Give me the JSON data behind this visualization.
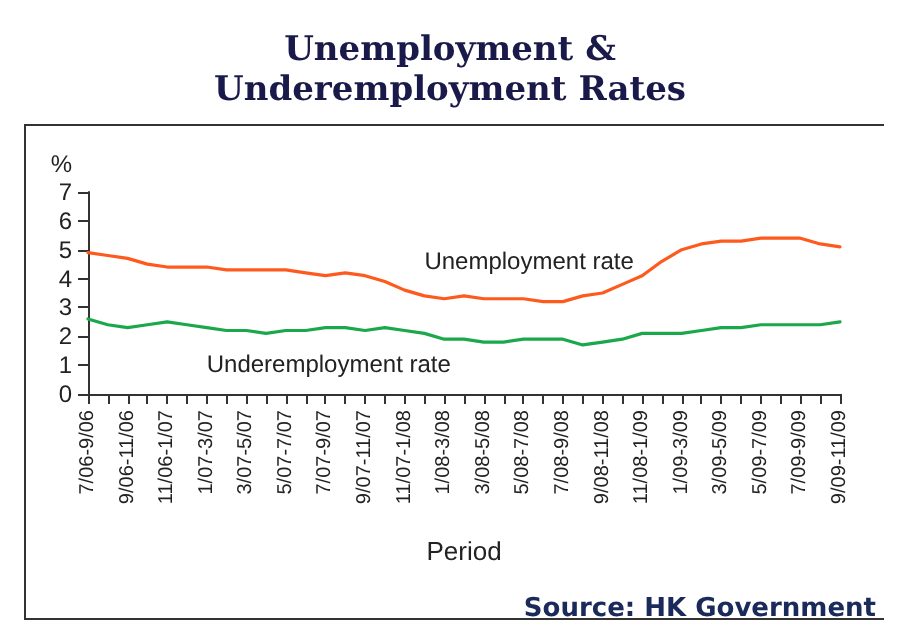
{
  "chart_data": {
    "type": "line",
    "title": "Unemployment &\nUnderemployment Rates",
    "ylabel": "%",
    "xlabel": "Period",
    "annotations": [
      "Source: HK Government"
    ],
    "categories": [
      "7/06-9/06",
      null,
      "9/06-11/06",
      null,
      "11/06-1/07",
      null,
      "1/07-3/07",
      null,
      "3/07-5/07",
      null,
      "5/07-7/07",
      null,
      "7/07-9/07",
      null,
      "9/07-11/07",
      null,
      "11/07-1/08",
      null,
      "1/08-3/08",
      null,
      "3/08-5/08",
      null,
      "5/08-7/08",
      null,
      "7/08-9/08",
      null,
      "9/08-11/08",
      null,
      "11/08-1/09",
      null,
      "1/09-3/09",
      null,
      "3/09-5/09",
      null,
      "5/09-7/09",
      null,
      "7/09-9/09",
      null,
      "9/09-11/09"
    ],
    "series": [
      {
        "name": "Unemployment rate",
        "color": "#ff5a1e",
        "values": [
          4.9,
          4.8,
          4.7,
          4.5,
          4.4,
          4.4,
          4.4,
          4.3,
          4.3,
          4.3,
          4.3,
          4.2,
          4.1,
          4.2,
          4.1,
          3.9,
          3.6,
          3.4,
          3.3,
          3.4,
          3.3,
          3.3,
          3.3,
          3.2,
          3.2,
          3.4,
          3.5,
          3.8,
          4.1,
          4.6,
          5.0,
          5.2,
          5.3,
          5.3,
          5.4,
          5.4,
          5.4,
          5.2,
          5.1
        ]
      },
      {
        "name": "Underemployment rate",
        "color": "#1aa84a",
        "values": [
          2.6,
          2.4,
          2.3,
          2.4,
          2.5,
          2.4,
          2.3,
          2.2,
          2.2,
          2.1,
          2.2,
          2.2,
          2.3,
          2.3,
          2.2,
          2.3,
          2.2,
          2.1,
          1.9,
          1.9,
          1.8,
          1.8,
          1.9,
          1.9,
          1.9,
          1.7,
          1.8,
          1.9,
          2.1,
          2.1,
          2.1,
          2.2,
          2.3,
          2.3,
          2.4,
          2.4,
          2.4,
          2.4,
          2.5
        ]
      }
    ],
    "ylim": [
      0,
      7
    ],
    "yticks": [
      0,
      1,
      2,
      3,
      4,
      5,
      6,
      7
    ],
    "grid": false,
    "legend": false,
    "marker": "none",
    "line_style": "solid"
  }
}
